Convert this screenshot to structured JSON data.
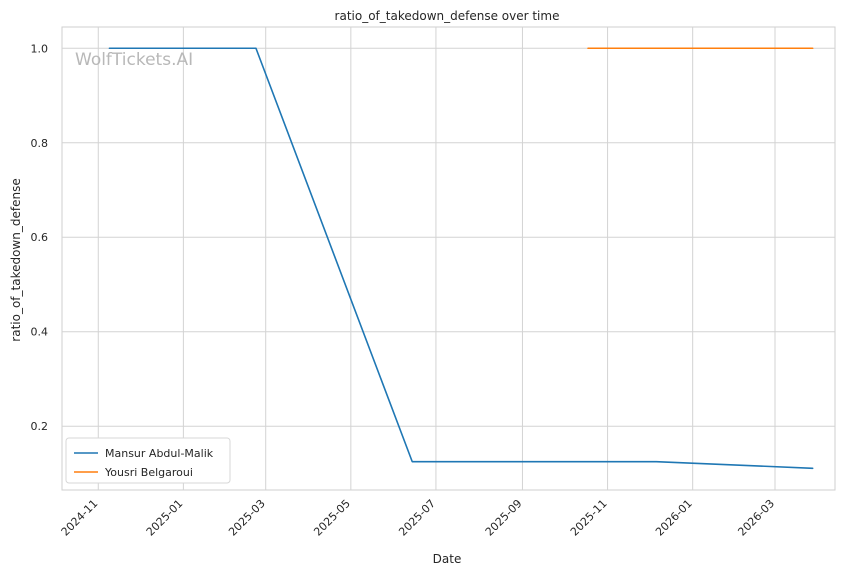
{
  "chart_data": {
    "type": "line",
    "title": "ratio_of_takedown_defense over time",
    "xlabel": "Date",
    "ylabel": "ratio_of_takedown_defense",
    "watermark": "WolfTickets.AI",
    "x_ticks": [
      "2024-11",
      "2025-01",
      "2025-03",
      "2025-05",
      "2025-07",
      "2025-09",
      "2025-11",
      "2026-01",
      "2026-03"
    ],
    "y_ticks": [
      "0.2",
      "0.4",
      "0.6",
      "0.8",
      "1.0"
    ],
    "ylim": [
      0.065,
      1.045
    ],
    "xlim": [
      "2024-10-06",
      "2026-04-13"
    ],
    "grid": true,
    "legend_position": "lower-left",
    "series": [
      {
        "name": "Mansur Abdul-Malik",
        "color": "#1f77b4",
        "points": [
          {
            "x": "2024-11-09",
            "y": 1.0
          },
          {
            "x": "2025-02-22",
            "y": 1.0
          },
          {
            "x": "2025-06-14",
            "y": 0.125
          },
          {
            "x": "2025-12-06",
            "y": 0.125
          },
          {
            "x": "2026-03-28",
            "y": 0.111
          }
        ]
      },
      {
        "name": "Yousri Belgaroui",
        "color": "#ff7f0e",
        "points": [
          {
            "x": "2025-10-18",
            "y": 1.0
          },
          {
            "x": "2026-03-28",
            "y": 1.0
          }
        ]
      }
    ]
  }
}
